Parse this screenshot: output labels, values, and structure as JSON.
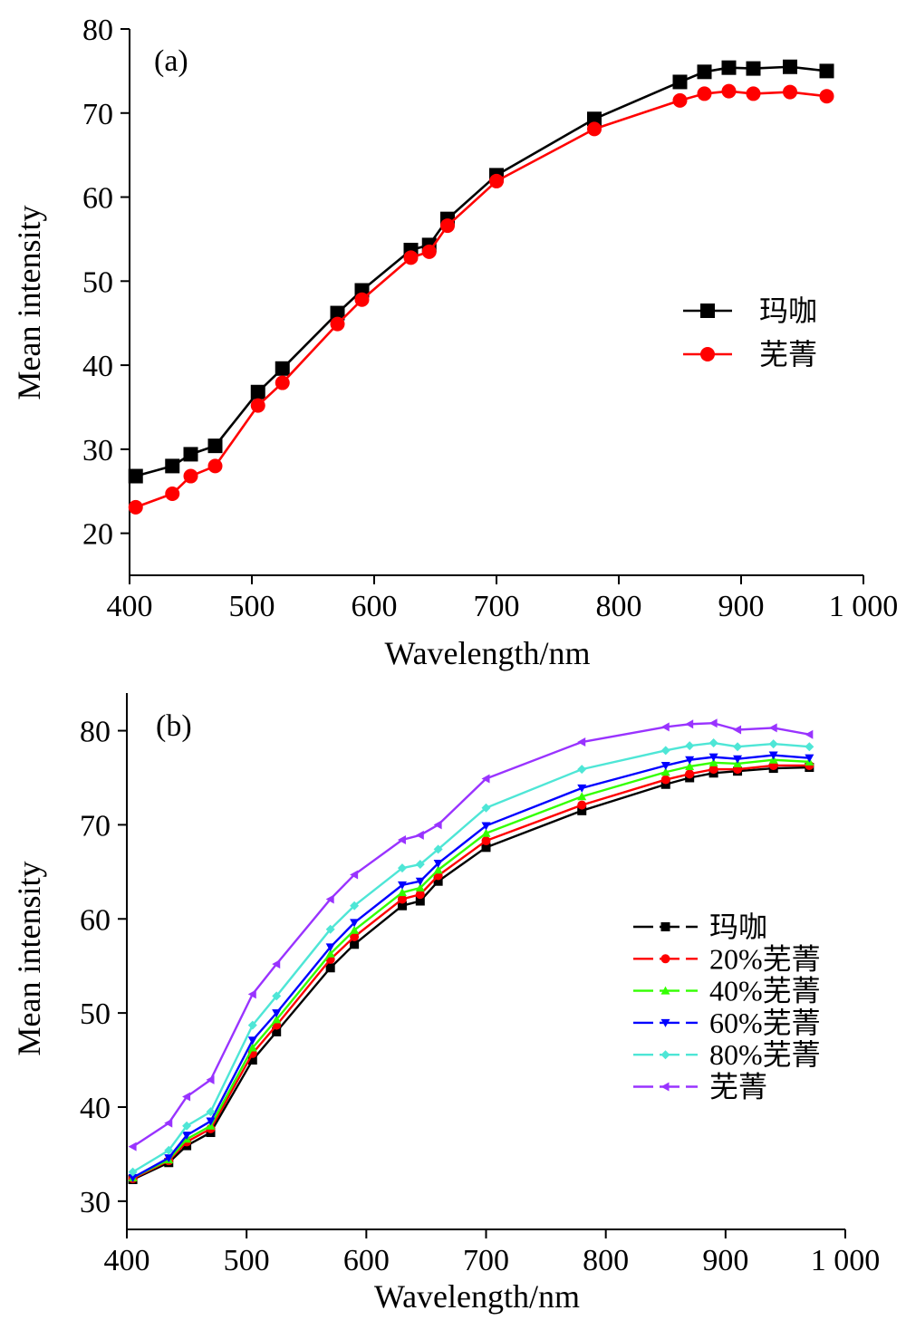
{
  "chart_data": [
    {
      "type": "line",
      "panel_label": "(a)",
      "xlabel": "Wavelength/nm",
      "ylabel": "Mean intensity",
      "xlim": [
        400,
        1000
      ],
      "ylim": [
        15,
        80
      ],
      "x_ticks": [
        400,
        500,
        600,
        700,
        800,
        900,
        1000
      ],
      "x_tick_labels": [
        "400",
        "500",
        "600",
        "700",
        "800",
        "900",
        "1 000"
      ],
      "y_ticks": [
        20,
        30,
        40,
        50,
        60,
        70,
        80
      ],
      "y_tick_labels": [
        "20",
        "30",
        "40",
        "50",
        "60",
        "70",
        "80"
      ],
      "grid": false,
      "legend_position": "right-middle",
      "x": [
        405,
        435,
        450,
        470,
        505,
        525,
        570,
        590,
        630,
        645,
        660,
        700,
        780,
        850,
        870,
        890,
        910,
        940,
        970
      ],
      "series": [
        {
          "name": "玛咖",
          "color": "#000000",
          "marker": "square",
          "values": [
            26.8,
            28.0,
            29.4,
            30.4,
            36.8,
            39.6,
            46.2,
            48.9,
            53.7,
            54.3,
            57.4,
            62.6,
            69.3,
            73.7,
            74.9,
            75.4,
            75.3,
            75.5,
            75.0
          ]
        },
        {
          "name": "芜菁",
          "color": "#ff0000",
          "marker": "circle",
          "values": [
            23.1,
            24.7,
            26.8,
            28.0,
            35.2,
            37.9,
            44.9,
            47.8,
            52.8,
            53.5,
            56.6,
            61.9,
            68.1,
            71.5,
            72.3,
            72.6,
            72.3,
            72.5,
            72.0
          ]
        }
      ]
    },
    {
      "type": "line",
      "panel_label": "(b)",
      "xlabel": "Wavelength/nm",
      "ylabel": "Mean intensity",
      "xlim": [
        400,
        1000
      ],
      "ylim": [
        27,
        84
      ],
      "x_ticks": [
        400,
        500,
        600,
        700,
        800,
        900,
        1000
      ],
      "x_tick_labels": [
        "400",
        "500",
        "600",
        "700",
        "800",
        "900",
        "1 000"
      ],
      "y_ticks": [
        30,
        40,
        50,
        60,
        70,
        80
      ],
      "y_tick_labels": [
        "30",
        "40",
        "50",
        "60",
        "70",
        "80"
      ],
      "grid": false,
      "legend_position": "right-middle",
      "x": [
        405,
        435,
        450,
        470,
        505,
        525,
        570,
        590,
        630,
        645,
        660,
        700,
        780,
        850,
        870,
        890,
        910,
        940,
        970
      ],
      "series": [
        {
          "name": "玛咖",
          "color": "#000000",
          "marker": "square",
          "values": [
            32.3,
            34.1,
            35.9,
            37.3,
            45.0,
            48.0,
            54.8,
            57.3,
            61.4,
            61.9,
            64.0,
            67.6,
            71.5,
            74.3,
            75.0,
            75.5,
            75.7,
            76.0,
            76.1
          ]
        },
        {
          "name": "20%芜菁",
          "color": "#ff0000",
          "marker": "circle",
          "values": [
            32.4,
            34.3,
            36.3,
            37.7,
            45.7,
            48.7,
            55.7,
            58.1,
            62.1,
            62.6,
            64.6,
            68.3,
            72.1,
            74.8,
            75.4,
            75.9,
            75.9,
            76.3,
            76.3
          ]
        },
        {
          "name": "40%芜菁",
          "color": "#33ff00",
          "marker": "triangle-up",
          "values": [
            32.5,
            34.4,
            36.6,
            38.0,
            46.3,
            49.3,
            56.3,
            58.8,
            62.8,
            63.3,
            65.2,
            69.1,
            73.0,
            75.6,
            76.2,
            76.6,
            76.5,
            76.9,
            76.7
          ]
        },
        {
          "name": "60%芜菁",
          "color": "#0000ff",
          "marker": "triangle-down",
          "values": [
            32.5,
            34.6,
            37.0,
            38.5,
            47.1,
            50.0,
            57.0,
            59.6,
            63.6,
            64.0,
            65.9,
            69.9,
            73.9,
            76.3,
            76.9,
            77.2,
            77.0,
            77.4,
            77.1
          ]
        },
        {
          "name": "80%芜菁",
          "color": "#4ee6d6",
          "marker": "diamond",
          "values": [
            33.1,
            35.4,
            38.0,
            39.5,
            48.7,
            51.8,
            58.9,
            61.4,
            65.4,
            65.8,
            67.4,
            71.8,
            75.9,
            77.9,
            78.4,
            78.7,
            78.3,
            78.6,
            78.3
          ]
        },
        {
          "name": "芜菁",
          "color": "#9933ff",
          "marker": "triangle-left",
          "values": [
            35.8,
            38.3,
            41.1,
            42.9,
            52.0,
            55.2,
            62.1,
            64.7,
            68.4,
            68.9,
            70.0,
            74.9,
            78.8,
            80.4,
            80.7,
            80.8,
            80.1,
            80.3,
            79.6
          ]
        }
      ]
    }
  ]
}
